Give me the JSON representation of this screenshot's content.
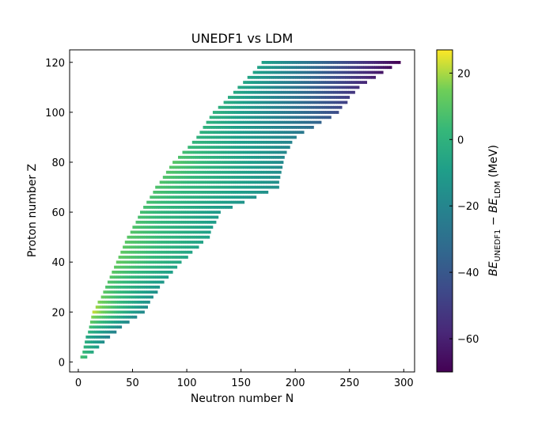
{
  "chart_data": {
    "type": "heatmap",
    "title": "UNEDF1 vs LDM",
    "xlabel": "Neutron number N",
    "ylabel": "Proton number Z",
    "xlim": [
      -8,
      310
    ],
    "ylim": [
      -4,
      125
    ],
    "xticks": [
      0,
      50,
      100,
      150,
      200,
      250,
      300
    ],
    "yticks": [
      0,
      20,
      40,
      60,
      80,
      100,
      120
    ],
    "colorbar": {
      "label": "BE_UNEDF1 − BE_LDM (MeV)",
      "vmin": -70,
      "vmax": 27,
      "ticks": [
        20,
        0,
        -20,
        -40,
        -60
      ],
      "colormap": "viridis"
    },
    "grid": false,
    "region_rows": [
      {
        "Z": 2,
        "N": [
          3,
          8
        ],
        "diff": [
          2,
          6
        ]
      },
      {
        "Z": 10,
        "N": [
          8,
          28
        ],
        "diff": [
          -22,
          -5
        ]
      },
      {
        "Z": 20,
        "N": [
          14,
          60
        ],
        "diff": [
          -18,
          22
        ]
      },
      {
        "Z": 30,
        "N": [
          26,
          75
        ],
        "diff": [
          -14,
          8
        ]
      },
      {
        "Z": 40,
        "N": [
          36,
          95
        ],
        "diff": [
          -6,
          12
        ]
      },
      {
        "Z": 50,
        "N": [
          46,
          120
        ],
        "diff": [
          -8,
          10
        ]
      },
      {
        "Z": 60,
        "N": [
          58,
          130
        ],
        "diff": [
          -12,
          6
        ]
      },
      {
        "Z": 70,
        "N": [
          72,
          185
        ],
        "diff": [
          -16,
          8
        ]
      },
      {
        "Z": 80,
        "N": [
          88,
          188
        ],
        "diff": [
          -18,
          10
        ]
      },
      {
        "Z": 90,
        "N": [
          110,
          200
        ],
        "diff": [
          -22,
          0
        ]
      },
      {
        "Z": 100,
        "N": [
          125,
          240
        ],
        "diff": [
          -45,
          0
        ]
      },
      {
        "Z": 110,
        "N": [
          148,
          258
        ],
        "diff": [
          -55,
          -5
        ]
      },
      {
        "Z": 120,
        "N": [
          170,
          296
        ],
        "diff": [
          -70,
          -8
        ]
      }
    ]
  }
}
